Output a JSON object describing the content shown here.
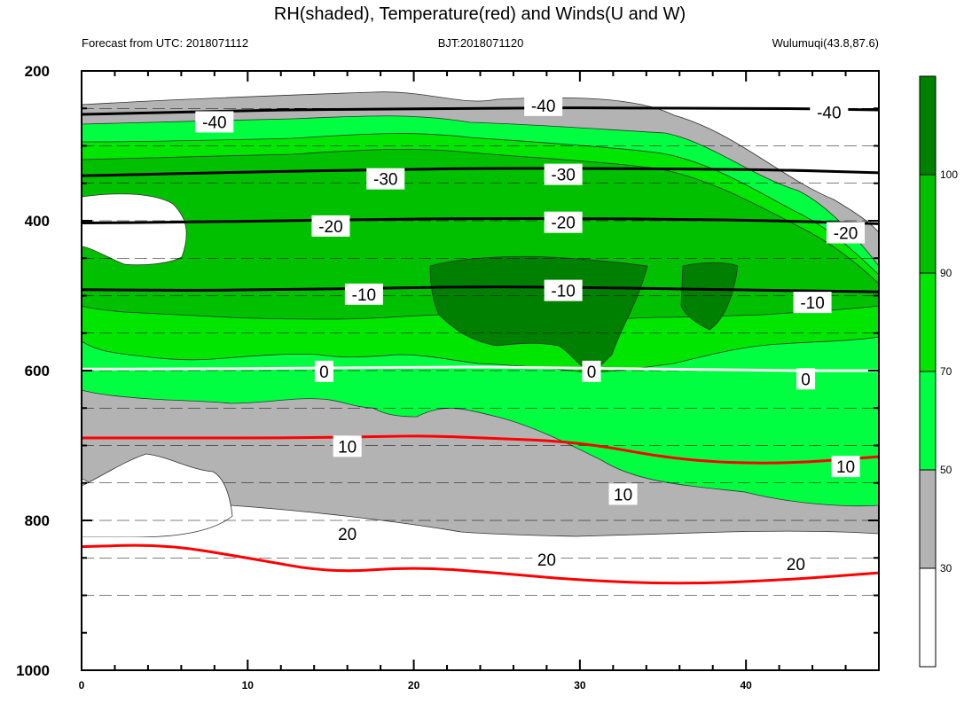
{
  "title": "RH(shaded), Temperature(red) and Winds(U and W)",
  "subtitle_left": "Forecast from UTC: 2018071112",
  "subtitle_center": "BJT:2018071120",
  "subtitle_right": "Wulumuqi(43.8,87.6)",
  "chart_data": {
    "type": "contour",
    "x_ticks": [
      0,
      10,
      20,
      30,
      40
    ],
    "xlim": [
      0,
      48
    ],
    "y_ticks": [
      200,
      400,
      600,
      800,
      1000
    ],
    "ylim": [
      1000,
      200
    ],
    "y_inverted": true,
    "pressure_levels": [
      200,
      250,
      300,
      350,
      400,
      450,
      500,
      550,
      600,
      650,
      700,
      750,
      800,
      850,
      900
    ],
    "colorbar": {
      "ticks": [
        30,
        50,
        70,
        90,
        100
      ],
      "colors": [
        "#ffffff",
        "#b3b3b3",
        "#00ff40",
        "#00e600",
        "#00c000",
        "#008000"
      ]
    },
    "temperature_isotherms": [
      {
        "label": "-40",
        "color": "#000000",
        "x": [
          0,
          6,
          12,
          18,
          24,
          30,
          36,
          42,
          48
        ],
        "p": [
          258,
          255,
          252,
          251,
          250,
          249,
          250,
          250,
          252
        ]
      },
      {
        "label": "-30",
        "color": "#000000",
        "x": [
          0,
          6,
          12,
          18,
          24,
          30,
          36,
          42,
          48
        ],
        "p": [
          340,
          337,
          334,
          332,
          330,
          330,
          331,
          332,
          336
        ]
      },
      {
        "label": "-20",
        "color": "#000000",
        "x": [
          0,
          6,
          12,
          18,
          24,
          30,
          36,
          42,
          48
        ],
        "p": [
          403,
          402,
          400,
          398,
          397,
          397,
          398,
          400,
          404
        ]
      },
      {
        "label": "-10",
        "color": "#000000",
        "x": [
          0,
          6,
          12,
          18,
          24,
          30,
          36,
          42,
          48
        ],
        "p": [
          492,
          493,
          492,
          490,
          488,
          489,
          491,
          493,
          495
        ]
      },
      {
        "label": "0",
        "color": "#ffffff",
        "x": [
          0,
          6,
          12,
          18,
          24,
          30,
          36,
          42,
          48
        ],
        "p": [
          598,
          598,
          597,
          596,
          595,
          597,
          598,
          600,
          600
        ]
      },
      {
        "label": "10",
        "color": "#ff0000",
        "x": [
          0,
          6,
          12,
          18,
          21,
          24,
          30,
          36,
          42,
          48
        ],
        "p": [
          690,
          690,
          690,
          688,
          687,
          690,
          695,
          720,
          725,
          715
        ]
      },
      {
        "label": "20",
        "color": "#ff0000",
        "x": [
          0,
          5,
          10,
          15,
          20,
          25,
          30,
          36,
          42,
          48
        ],
        "p": [
          835,
          832,
          850,
          870,
          862,
          870,
          880,
          885,
          880,
          870
        ]
      }
    ],
    "temperature_labels": [
      {
        "text": "-40",
        "x": 8,
        "p": 268
      },
      {
        "text": "-40",
        "x": 27.8,
        "p": 246
      },
      {
        "text": "-40",
        "x": 45,
        "p": 255
      },
      {
        "text": "-30",
        "x": 18.3,
        "p": 344
      },
      {
        "text": "-30",
        "x": 29,
        "p": 338
      },
      {
        "text": "-20",
        "x": 15,
        "p": 407
      },
      {
        "text": "-20",
        "x": 29,
        "p": 402
      },
      {
        "text": "-20",
        "x": 46,
        "p": 416
      },
      {
        "text": "-10",
        "x": 17,
        "p": 498
      },
      {
        "text": "-10",
        "x": 29,
        "p": 493
      },
      {
        "text": "-10",
        "x": 44,
        "p": 509
      },
      {
        "text": "0",
        "x": 14.6,
        "p": 601
      },
      {
        "text": "0",
        "x": 30.7,
        "p": 601
      },
      {
        "text": "0",
        "x": 43.6,
        "p": 611
      },
      {
        "text": "10",
        "x": 16,
        "p": 701
      },
      {
        "text": "10",
        "x": 32.6,
        "p": 765
      },
      {
        "text": "10",
        "x": 46,
        "p": 728
      },
      {
        "text": "20",
        "x": 16,
        "p": 818
      },
      {
        "text": "20",
        "x": 28,
        "p": 852
      },
      {
        "text": "20",
        "x": 43,
        "p": 858
      }
    ]
  }
}
